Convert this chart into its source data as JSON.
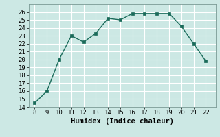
{
  "x": [
    8,
    9,
    10,
    11,
    12,
    13,
    14,
    15,
    16,
    17,
    18,
    19,
    20,
    21,
    22
  ],
  "y": [
    14.5,
    16.0,
    20.0,
    23.0,
    22.2,
    23.3,
    25.2,
    25.0,
    25.8,
    25.8,
    25.8,
    25.8,
    24.2,
    22.0,
    19.8
  ],
  "line_color": "#1a6b5a",
  "marker_color": "#1a6b5a",
  "bg_color": "#cce8e4",
  "grid_color": "#ffffff",
  "xlabel": "Humidex (Indice chaleur)",
  "ylim": [
    14,
    27
  ],
  "xlim": [
    7.5,
    22.8
  ],
  "yticks": [
    14,
    15,
    16,
    17,
    18,
    19,
    20,
    21,
    22,
    23,
    24,
    25,
    26
  ],
  "xticks": [
    8,
    9,
    10,
    11,
    12,
    13,
    14,
    15,
    16,
    17,
    18,
    19,
    20,
    21,
    22
  ],
  "xlabel_fontsize": 7.5,
  "tick_fontsize": 6.5,
  "line_width": 1.0,
  "marker_size": 2.5
}
